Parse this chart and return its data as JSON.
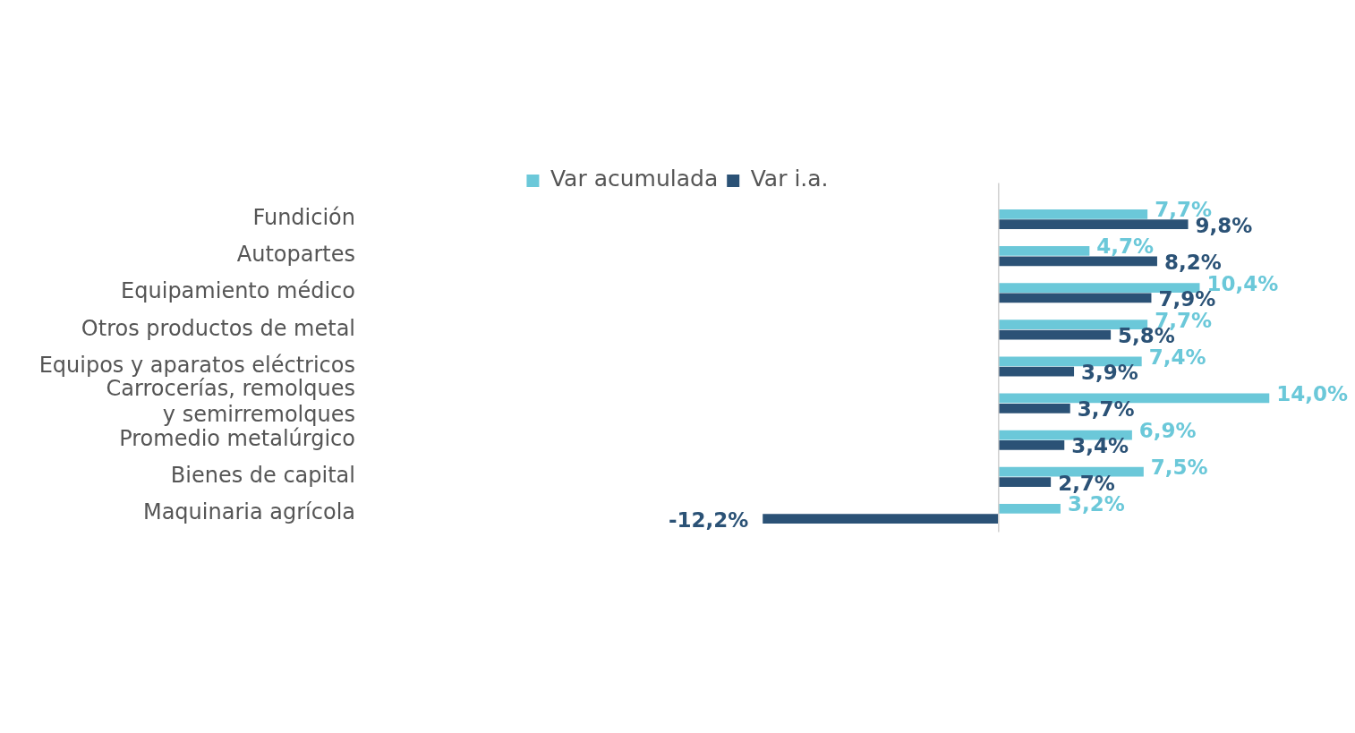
{
  "chart_data": {
    "type": "bar",
    "orientation": "horizontal",
    "legend": "top",
    "categories": [
      "Fundición",
      "Autopartes",
      "Equipamiento médico",
      "Otros productos de metal",
      "Equipos y aparatos eléctricos",
      "Carrocerías, remolques\ny semirremolques",
      "Promedio metalúrgico",
      "Bienes de capital",
      "Maquinaria agrícola"
    ],
    "series": [
      {
        "name": "Var acumulada",
        "color": "#6bc8d9",
        "values": [
          7.7,
          4.7,
          10.4,
          7.7,
          7.4,
          14.0,
          6.9,
          7.5,
          3.2
        ],
        "value_labels": [
          "7,7%",
          "4,7%",
          "10,4%",
          "7,7%",
          "7,4%",
          "14,0%",
          "6,9%",
          "7,5%",
          "3,2%"
        ]
      },
      {
        "name": "Var i.a.",
        "color": "#2b5276",
        "values": [
          9.8,
          8.2,
          7.9,
          5.8,
          3.9,
          3.7,
          3.4,
          2.7,
          -12.2
        ],
        "value_labels": [
          "9,8%",
          "8,2%",
          "7,9%",
          "5,8%",
          "3,9%",
          "3,7%",
          "3,4%",
          "2,7%",
          "-12,2%"
        ]
      }
    ]
  }
}
